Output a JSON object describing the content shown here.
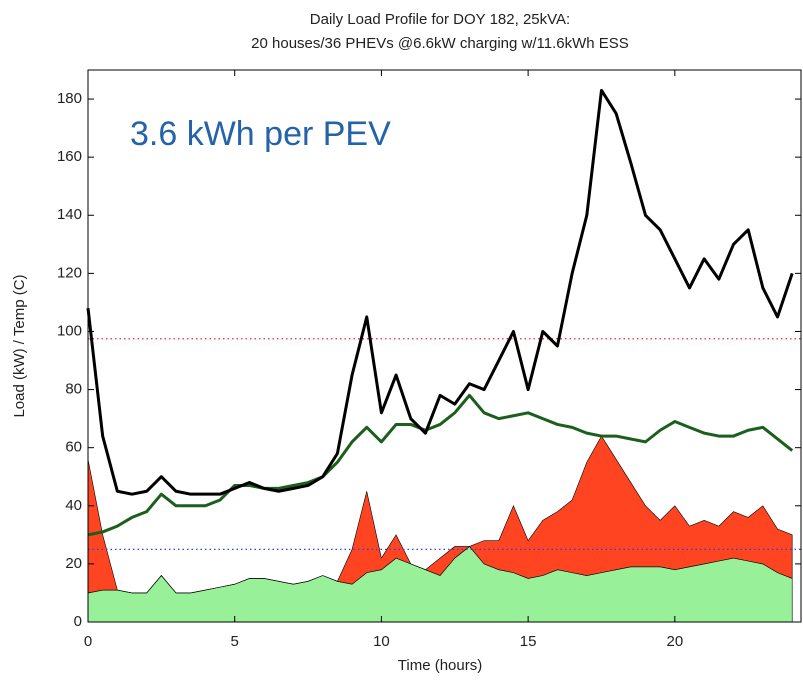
{
  "chart_data": {
    "type": "line",
    "title": "Daily Load Profile for DOY 182, 25kVA:",
    "subtitle": "20 houses/36 PHEVs @6.6kW charging w/11.6kWh ESS",
    "x_label": "Time (hours)",
    "y_label": "Load (kW) / Temp (C)",
    "annotation": "3.6 kWh per PEV",
    "xlim": [
      0,
      24.3
    ],
    "ylim": [
      0,
      190
    ],
    "xticks": [
      0,
      5,
      10,
      15,
      20
    ],
    "yticks": [
      0,
      20,
      40,
      60,
      80,
      100,
      120,
      140,
      160,
      180
    ],
    "x": [
      0,
      0.5,
      1,
      1.5,
      2,
      2.5,
      3,
      3.5,
      4,
      4.5,
      5,
      5.5,
      6,
      6.5,
      7,
      7.5,
      8,
      8.5,
      9,
      9.5,
      10,
      10.5,
      11,
      11.5,
      12,
      12.5,
      13,
      13.5,
      14,
      14.5,
      15,
      15.5,
      16,
      16.5,
      17,
      17.5,
      18,
      18.5,
      19,
      19.5,
      20,
      20.5,
      21,
      21.5,
      22,
      22.5,
      23,
      23.5,
      24
    ],
    "series": [
      {
        "color": "#98f098",
        "area": true,
        "stacked": false,
        "values": [
          10,
          11,
          11,
          10,
          10,
          16,
          10,
          10,
          11,
          12,
          13,
          15,
          15,
          14,
          13,
          14,
          16,
          14,
          13,
          17,
          18,
          22,
          20,
          18,
          16,
          22,
          26,
          20,
          18,
          17,
          15,
          16,
          18,
          17,
          16,
          17,
          18,
          19,
          19,
          19,
          18,
          19,
          20,
          21,
          22,
          21,
          20,
          17,
          15
        ]
      },
      {
        "color": "#ff4422",
        "area": true,
        "stacked": true,
        "values": [
          46,
          19,
          0,
          0,
          0,
          0,
          0,
          0,
          0,
          0,
          0,
          0,
          0,
          0,
          0,
          0,
          0,
          0,
          12,
          28,
          4,
          8,
          0,
          0,
          6,
          4,
          0,
          8,
          10,
          23,
          13,
          19,
          20,
          25,
          39,
          47,
          38,
          29,
          21,
          16,
          22,
          14,
          15,
          12,
          16,
          15,
          20,
          15,
          15
        ]
      },
      {
        "color": "#1c5e1c",
        "area": false,
        "stacked": false,
        "values": [
          30,
          31,
          33,
          36,
          38,
          44,
          40,
          40,
          40,
          42,
          47,
          47,
          46,
          46,
          47,
          48,
          50,
          55,
          62,
          67,
          62,
          68,
          68,
          66,
          68,
          72,
          78,
          72,
          70,
          71,
          72,
          70,
          68,
          67,
          65,
          64,
          64,
          63,
          62,
          66,
          69,
          67,
          65,
          64,
          64,
          66,
          67,
          63,
          59
        ]
      },
      {
        "color": "#000000",
        "area": false,
        "stacked": false,
        "values": [
          108,
          64,
          45,
          44,
          45,
          50,
          45,
          44,
          44,
          44,
          46,
          48,
          46,
          45,
          46,
          47,
          50,
          58,
          85,
          105,
          72,
          85,
          70,
          65,
          78,
          75,
          82,
          80,
          90,
          100,
          80,
          100,
          95,
          120,
          140,
          183,
          175,
          158,
          140,
          135,
          125,
          115,
          125,
          118,
          130,
          135,
          115,
          105,
          120
        ]
      }
    ],
    "reference_lines": [
      {
        "value": 97.5,
        "color": "#e03030"
      },
      {
        "value": 25,
        "color": "#3040d0"
      }
    ]
  }
}
